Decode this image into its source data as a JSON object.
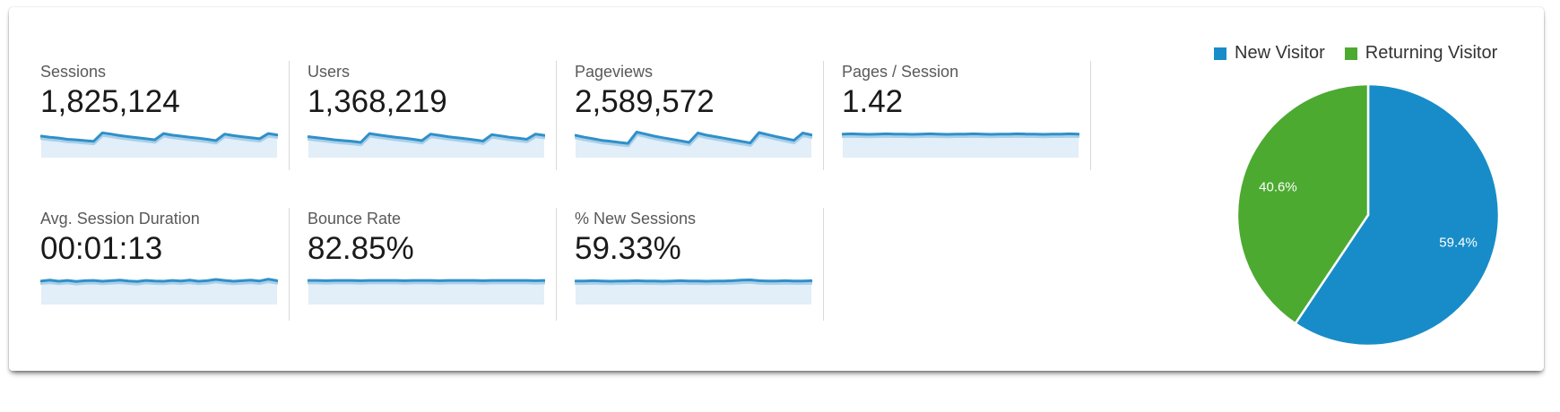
{
  "metrics": {
    "row1": [
      {
        "label": "Sessions",
        "value": "1,825,124",
        "spark": [
          0.38,
          0.42,
          0.45,
          0.5,
          0.52,
          0.55,
          0.58,
          0.25,
          0.3,
          0.36,
          0.4,
          0.44,
          0.48,
          0.52,
          0.28,
          0.34,
          0.38,
          0.42,
          0.46,
          0.5,
          0.55,
          0.3,
          0.36,
          0.4,
          0.44,
          0.48,
          0.28,
          0.33
        ]
      },
      {
        "label": "Users",
        "value": "1,368,219",
        "spark": [
          0.4,
          0.44,
          0.48,
          0.52,
          0.55,
          0.58,
          0.62,
          0.28,
          0.33,
          0.38,
          0.42,
          0.46,
          0.5,
          0.55,
          0.3,
          0.35,
          0.4,
          0.44,
          0.48,
          0.52,
          0.57,
          0.32,
          0.37,
          0.42,
          0.46,
          0.5,
          0.3,
          0.35
        ]
      },
      {
        "label": "Pageviews",
        "value": "2,589,572",
        "spark": [
          0.35,
          0.42,
          0.48,
          0.54,
          0.58,
          0.62,
          0.66,
          0.22,
          0.3,
          0.38,
          0.44,
          0.5,
          0.56,
          0.62,
          0.26,
          0.34,
          0.4,
          0.46,
          0.52,
          0.58,
          0.64,
          0.24,
          0.32,
          0.4,
          0.47,
          0.54,
          0.26,
          0.33
        ]
      },
      {
        "label": "Pages / Session",
        "value": "1.42",
        "spark": [
          0.3,
          0.29,
          0.3,
          0.31,
          0.3,
          0.29,
          0.3,
          0.3,
          0.31,
          0.3,
          0.29,
          0.3,
          0.31,
          0.3,
          0.3,
          0.29,
          0.3,
          0.31,
          0.3,
          0.3,
          0.29,
          0.3,
          0.3,
          0.31,
          0.3,
          0.3,
          0.29,
          0.3
        ]
      }
    ],
    "row2": [
      {
        "label": "Avg. Session Duration",
        "value": "00:01:13",
        "spark": [
          0.3,
          0.27,
          0.31,
          0.28,
          0.32,
          0.29,
          0.28,
          0.31,
          0.29,
          0.27,
          0.3,
          0.32,
          0.28,
          0.3,
          0.31,
          0.28,
          0.3,
          0.27,
          0.31,
          0.29,
          0.24,
          0.28,
          0.31,
          0.29,
          0.27,
          0.3,
          0.23,
          0.29
        ]
      },
      {
        "label": "Bounce Rate",
        "value": "82.85%",
        "spark": [
          0.28,
          0.28,
          0.29,
          0.28,
          0.28,
          0.28,
          0.29,
          0.28,
          0.28,
          0.28,
          0.28,
          0.29,
          0.28,
          0.28,
          0.28,
          0.29,
          0.28,
          0.28,
          0.28,
          0.28,
          0.29,
          0.28,
          0.28,
          0.28,
          0.28,
          0.28,
          0.29,
          0.28
        ]
      },
      {
        "label": "% New Sessions",
        "value": "59.33%",
        "spark": [
          0.3,
          0.3,
          0.29,
          0.3,
          0.31,
          0.3,
          0.3,
          0.29,
          0.3,
          0.3,
          0.31,
          0.3,
          0.29,
          0.3,
          0.3,
          0.31,
          0.3,
          0.3,
          0.29,
          0.27,
          0.26,
          0.29,
          0.3,
          0.3,
          0.29,
          0.3,
          0.3,
          0.29
        ]
      }
    ]
  },
  "chart_data": {
    "type": "pie",
    "legend_position": "top-right",
    "start_angle_deg": -90,
    "direction": "clockwise",
    "slices": [
      {
        "label": "New Visitor",
        "value": 59.4,
        "display": "59.4%",
        "color": "#188cc8"
      },
      {
        "label": "Returning Visitor",
        "value": 40.6,
        "display": "40.6%",
        "color": "#4caa31"
      }
    ]
  },
  "colors": {
    "spark_line": "#3090c9",
    "spark_line_halo": "#a9cfe9",
    "spark_fill": "#e2eef8",
    "divider": "#d9d9d9",
    "metric_label": "#595959",
    "metric_value": "#1a1a1a",
    "legend_text": "#333333",
    "pie_label_text": "#ffffff"
  }
}
